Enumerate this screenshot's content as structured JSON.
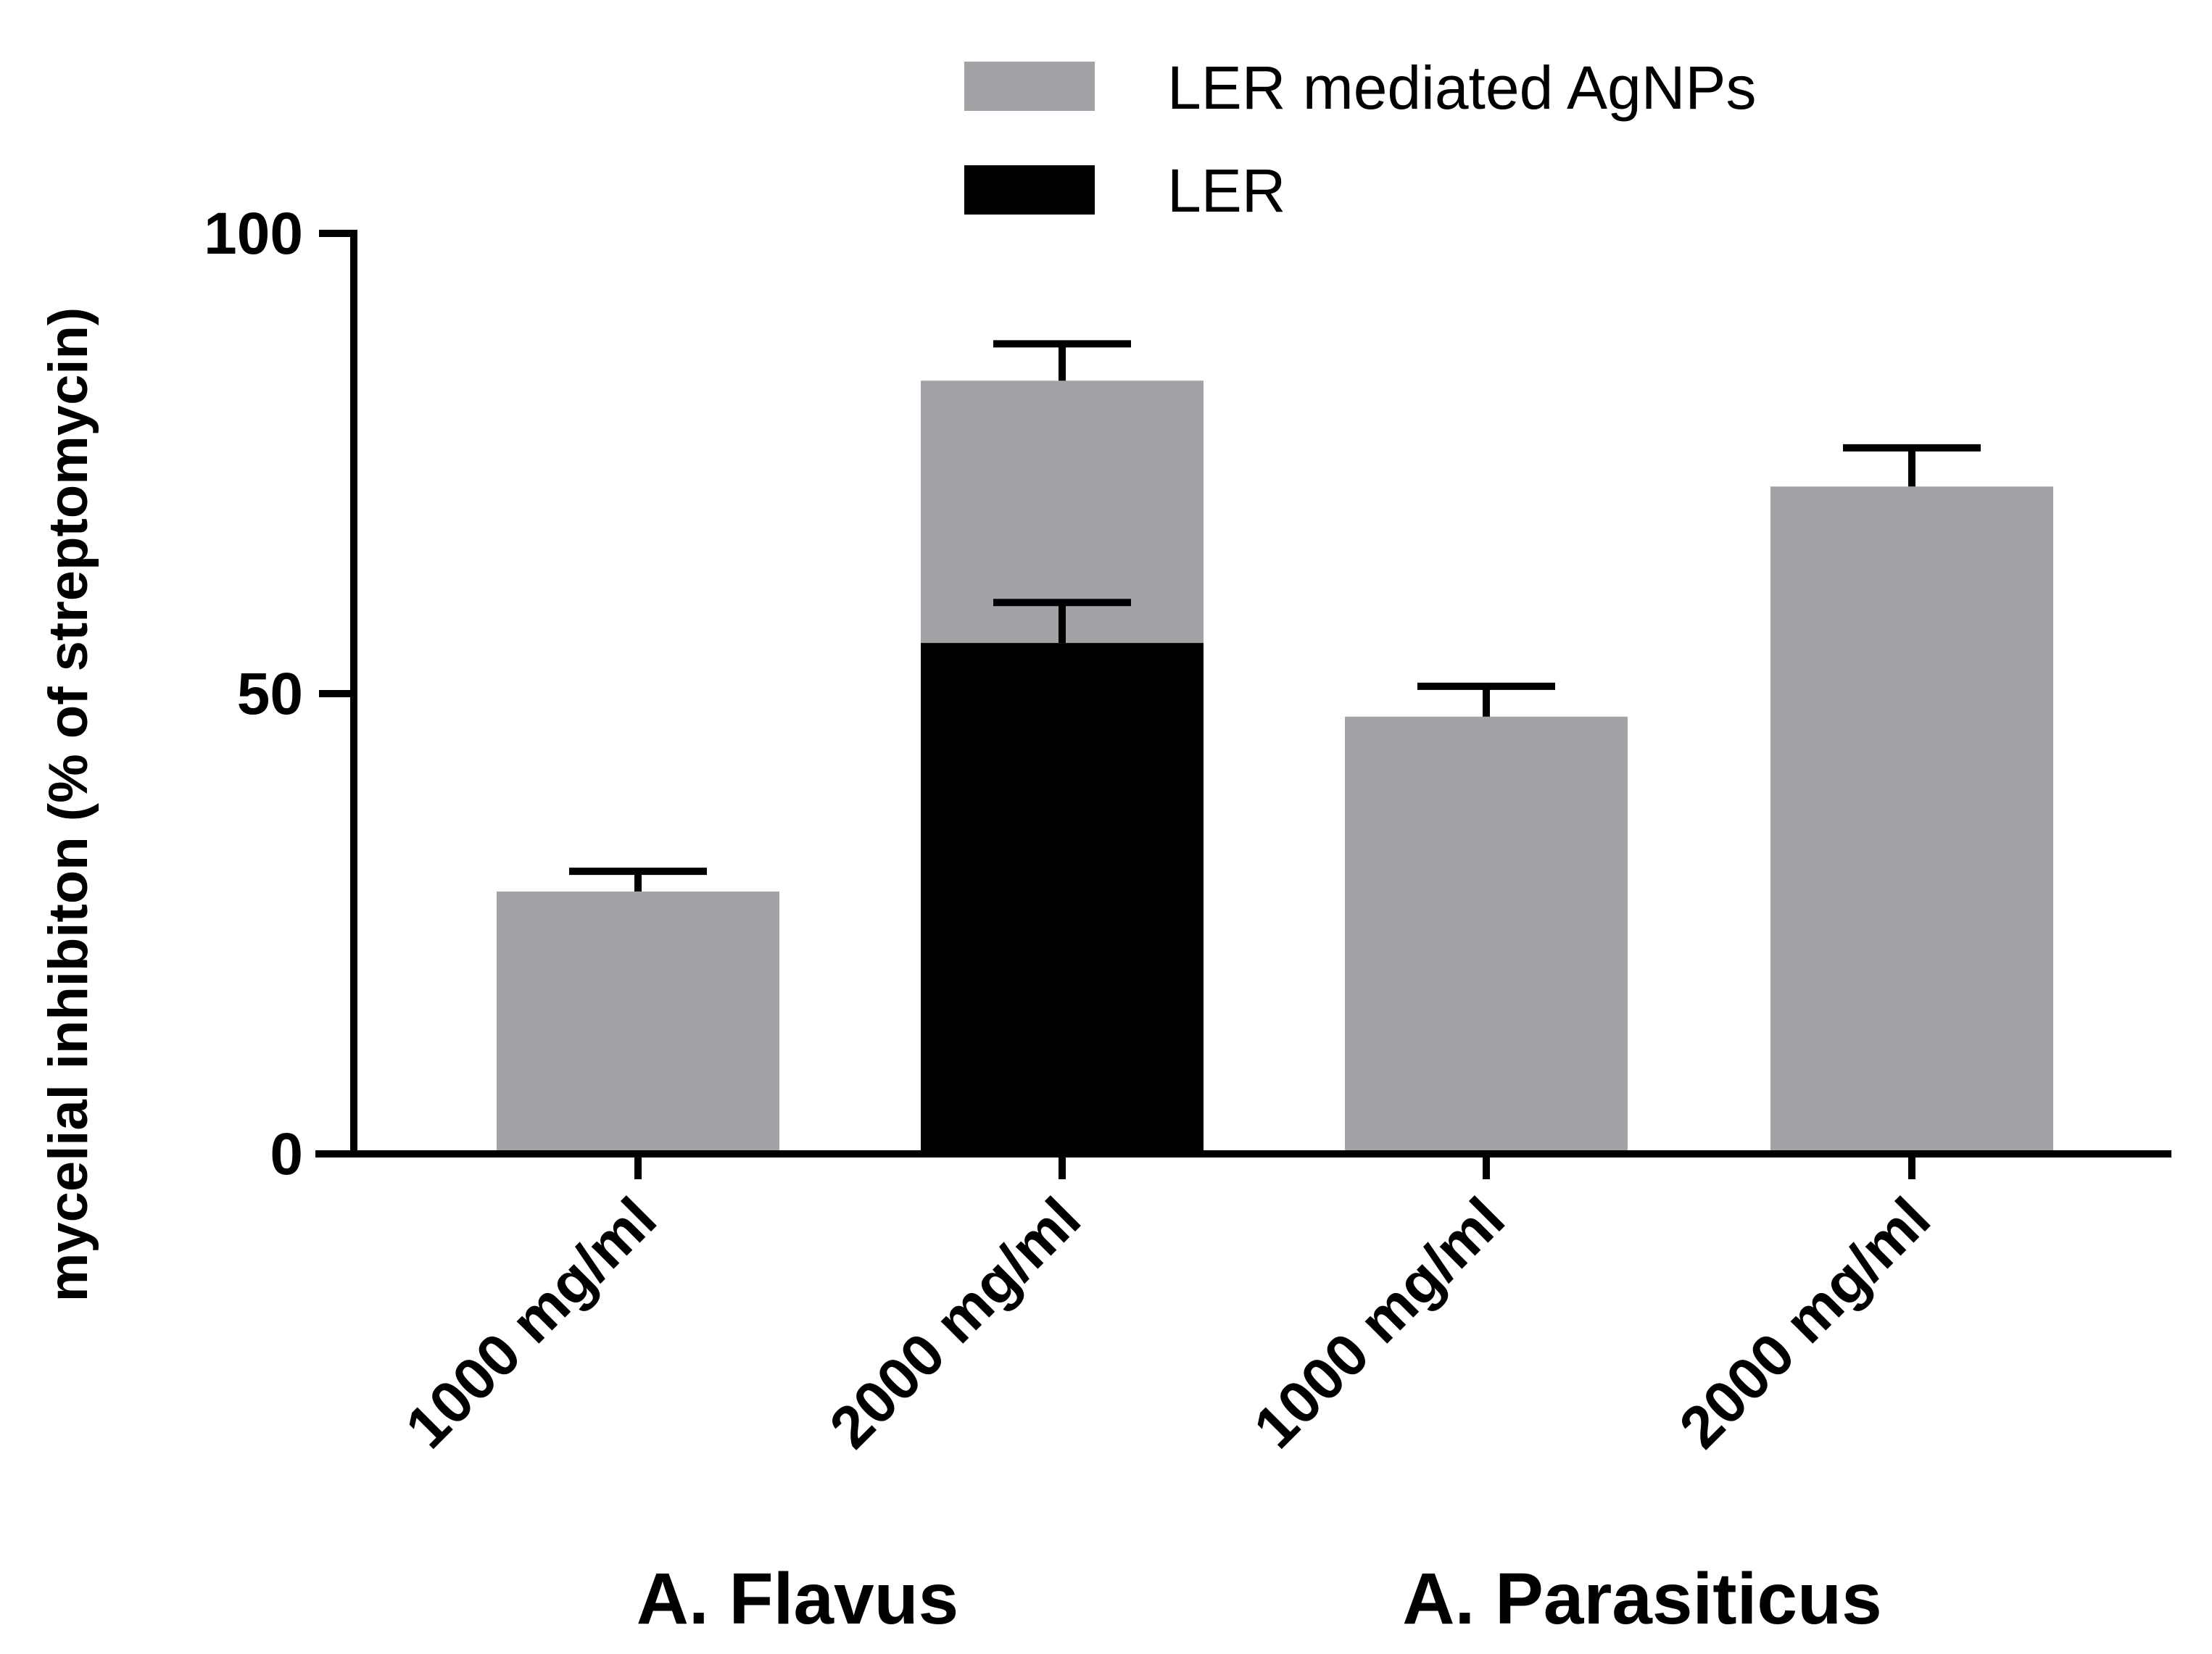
{
  "chart_data": {
    "type": "bar",
    "title": "",
    "xlabel": "",
    "ylabel": "mycelial inhibiton (% of streptomycin)",
    "ylim": [
      0,
      100
    ],
    "yticks": [
      0,
      50,
      100
    ],
    "categories": [
      "1000 mg/ml",
      "2000 mg/ml",
      "1000 mg/ml",
      "2000 mg/ml"
    ],
    "groups": [
      {
        "label": "A. Flavus",
        "categories": [
          0,
          1
        ]
      },
      {
        "label": "A. Parasiticus",
        "categories": [
          2,
          3
        ]
      }
    ],
    "series": [
      {
        "name": "LER mediated AgNPs",
        "color": "#a3a2a7",
        "values": [
          28.5,
          84,
          47.5,
          72.5
        ],
        "errors": [
          2.2,
          4,
          3.3,
          4.2
        ]
      },
      {
        "name": "LER",
        "color": "#000000",
        "values": [
          null,
          55.5,
          null,
          null
        ],
        "errors": [
          null,
          4.4,
          null,
          null
        ]
      }
    ],
    "legend": {
      "position": "top-right"
    },
    "grid": false
  }
}
